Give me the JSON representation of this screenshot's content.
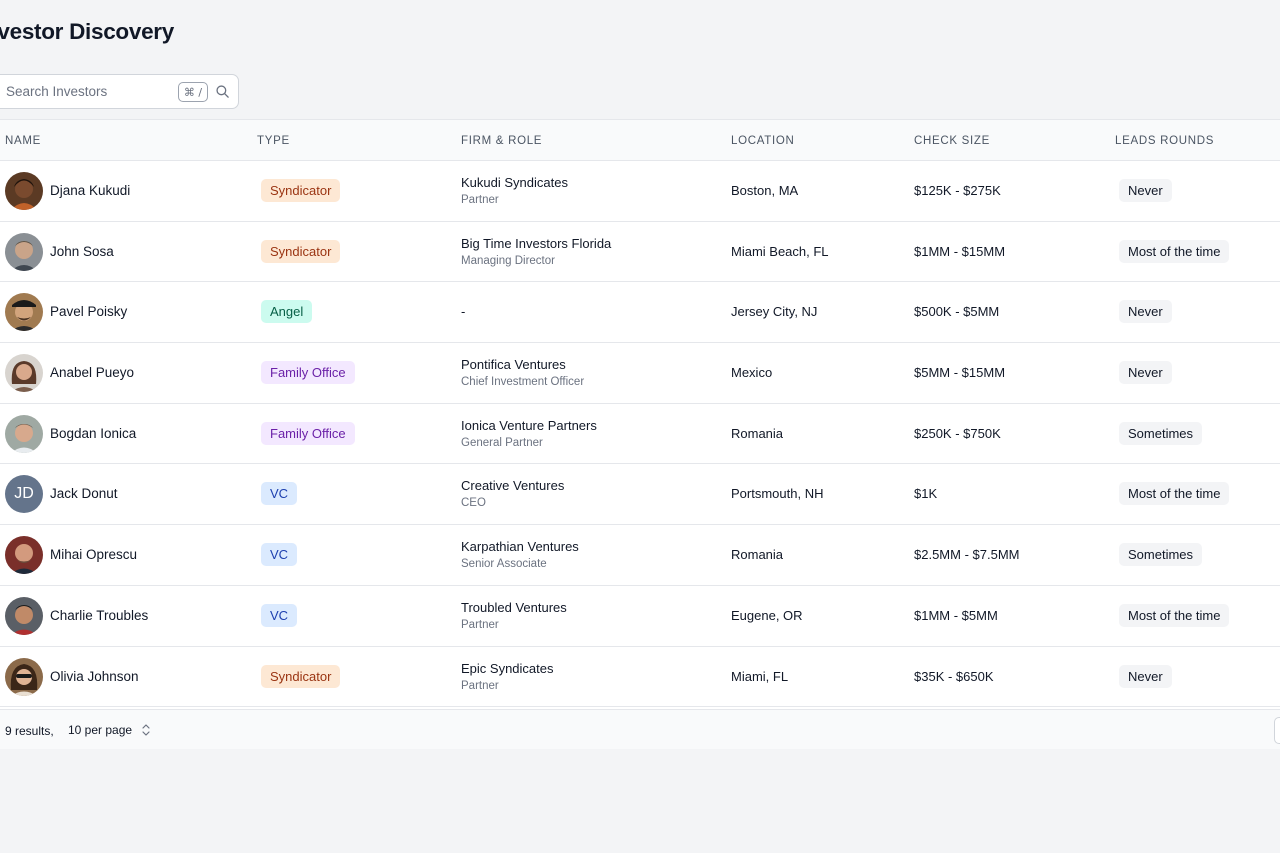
{
  "page": {
    "title": "Investor Discovery"
  },
  "search": {
    "placeholder": "Search Investors",
    "shortcut": "⌘ /"
  },
  "table": {
    "columns": [
      "Name",
      "Type",
      "Firm & Role",
      "Location",
      "Check Size",
      "Leads Rounds"
    ],
    "rows": [
      {
        "name": "Djana Kukudi",
        "type": "Syndicator",
        "firm": "Kukudi Syndicates",
        "role": "Partner",
        "location": "Boston, MA",
        "check": "$125K - $275K",
        "leads": "Never"
      },
      {
        "name": "John Sosa",
        "type": "Syndicator",
        "firm": "Big Time Investors Florida",
        "role": "Managing Director",
        "location": "Miami Beach, FL",
        "check": "$1MM - $15MM",
        "leads": "Most of the time"
      },
      {
        "name": "Pavel Poisky",
        "type": "Angel",
        "firm": "-",
        "role": "",
        "location": "Jersey City, NJ",
        "check": "$500K - $5MM",
        "leads": "Never"
      },
      {
        "name": "Anabel Pueyo",
        "type": "Family Office",
        "firm": "Pontifica Ventures",
        "role": "Chief Investment Officer",
        "location": "Mexico",
        "check": "$5MM - $15MM",
        "leads": "Never"
      },
      {
        "name": "Bogdan Ionica",
        "type": "Family Office",
        "firm": "Ionica Venture Partners",
        "role": "General Partner",
        "location": "Romania",
        "check": "$250K - $750K",
        "leads": "Sometimes"
      },
      {
        "name": "Jack Donut",
        "initials": "JD",
        "type": "VC",
        "firm": "Creative Ventures",
        "role": "CEO",
        "location": "Portsmouth, NH",
        "check": "$1K",
        "leads": "Most of the time"
      },
      {
        "name": "Mihai Oprescu",
        "type": "VC",
        "firm": "Karpathian Ventures",
        "role": "Senior Associate",
        "location": "Romania",
        "check": "$2.5MM - $7.5MM",
        "leads": "Sometimes"
      },
      {
        "name": "Charlie Troubles",
        "type": "VC",
        "firm": "Troubled Ventures",
        "role": "Partner",
        "location": "Eugene, OR",
        "check": "$1MM - $5MM",
        "leads": "Most of the time"
      },
      {
        "name": "Olivia Johnson",
        "type": "Syndicator",
        "firm": "Epic Syndicates",
        "role": "Partner",
        "location": "Miami, FL",
        "check": "$35K - $650K",
        "leads": "Never"
      }
    ]
  },
  "footer": {
    "results": "9 results,",
    "per_page": "10 per page"
  },
  "colors": {
    "syndicator_bg": "#fde8d4",
    "syndicator_fg": "#9a3412",
    "angel_bg": "#ccfbef",
    "angel_fg": "#065f46",
    "family_bg": "#f3e8ff",
    "family_fg": "#6b21a8",
    "vc_bg": "#dbeafe",
    "vc_fg": "#1e40af"
  },
  "icons": {
    "search": "search-icon",
    "sort": "chevron-up-down-icon"
  }
}
